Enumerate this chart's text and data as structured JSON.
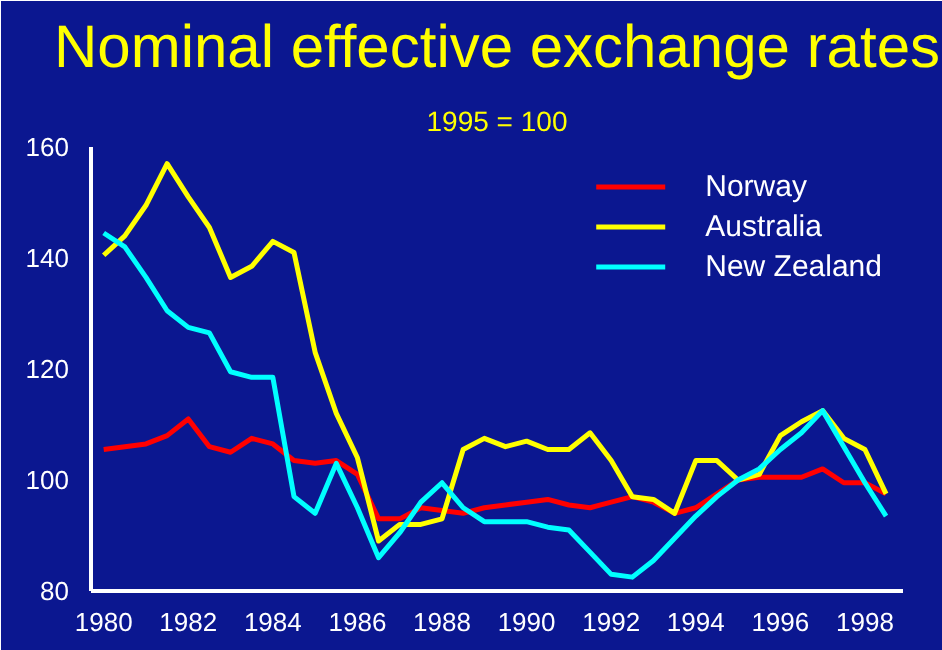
{
  "chart_data": {
    "type": "line",
    "title": "Nominal effective exchange rates",
    "subtitle": "1995 = 100",
    "x": [
      1980,
      1980.5,
      1981,
      1981.5,
      1982,
      1982.5,
      1983,
      1983.5,
      1984,
      1984.5,
      1985,
      1985.5,
      1986,
      1986.5,
      1987,
      1987.5,
      1988,
      1988.5,
      1989,
      1989.5,
      1990,
      1990.5,
      1991,
      1991.5,
      1992,
      1992.5,
      1993,
      1993.5,
      1994,
      1994.5,
      1995,
      1995.5,
      1996,
      1996.5,
      1997,
      1997.5,
      1998,
      1998.5
    ],
    "series": [
      {
        "name": "Norway",
        "color": "#ff0000",
        "values": [
          105.5,
          106,
          106.5,
          108,
          111,
          106,
          105,
          107.5,
          106.5,
          103.5,
          103,
          103.5,
          101,
          93,
          93,
          95,
          94.5,
          94,
          95,
          95.5,
          96,
          96.5,
          95.5,
          95,
          96,
          97,
          96,
          94,
          95,
          97.5,
          100,
          100.5,
          100.5,
          100.5,
          102,
          99.5,
          99.5,
          97.5
        ]
      },
      {
        "name": "Australia",
        "color": "#ffff00",
        "values": [
          140.5,
          144,
          149.5,
          157,
          151,
          145.5,
          136.5,
          138.5,
          143,
          141,
          123,
          112,
          104,
          89,
          92,
          92,
          93,
          105.5,
          107.5,
          106,
          107,
          105.5,
          105.5,
          108.5,
          103.5,
          97,
          96.5,
          94,
          103.5,
          103.5,
          100,
          101,
          108,
          110.5,
          112.5,
          107.5,
          105.5,
          97.5
        ]
      },
      {
        "name": "New Zealand",
        "color": "#00ffff",
        "values": [
          144.5,
          142,
          136.5,
          130.5,
          127.5,
          126.5,
          119.5,
          118.5,
          118.5,
          97,
          94,
          103,
          95,
          86,
          90.5,
          96,
          99.5,
          95,
          92.5,
          92.5,
          92.5,
          91.5,
          91,
          87,
          83,
          82.5,
          85.5,
          89.5,
          93.5,
          97,
          100,
          102,
          105.5,
          108.5,
          112.5,
          106,
          99.5,
          93.5
        ]
      }
    ],
    "xlim": [
      1979.7,
      1998.9
    ],
    "ylim": [
      80,
      160
    ],
    "xticks": [
      1980,
      1982,
      1984,
      1986,
      1988,
      1990,
      1992,
      1994,
      1996,
      1998
    ],
    "yticks": [
      80,
      100,
      120,
      140,
      160
    ],
    "grid": false,
    "legend": "top right",
    "marker": "none",
    "line_style": "solid"
  }
}
